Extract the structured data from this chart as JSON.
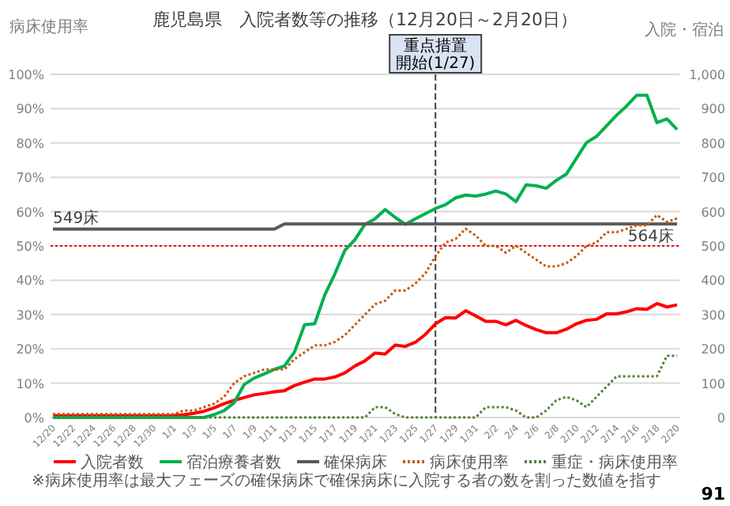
{
  "chart_data": {
    "type": "line",
    "title": "鹿児島県　入院者数等の推移（12月20日～2月20日）",
    "ylabel": "病床使用率",
    "y2label": "入院・宿泊",
    "categories": [
      "12/20",
      null,
      "12/22",
      null,
      "12/24",
      null,
      "12/26",
      null,
      "12/28",
      null,
      "12/30",
      null,
      "1/1",
      null,
      "1/3",
      null,
      "1/5",
      null,
      "1/7",
      null,
      "1/9",
      null,
      "1/11",
      null,
      "1/13",
      null,
      "1/15",
      null,
      "1/17",
      null,
      "1/19",
      null,
      "1/21",
      null,
      "1/23",
      null,
      "1/25",
      null,
      "1/27",
      null,
      "1/29",
      null,
      "1/31",
      null,
      "2/2",
      null,
      "2/4",
      null,
      "2/6",
      null,
      "2/8",
      null,
      "2/10",
      null,
      "2/12",
      null,
      "2/14",
      null,
      "2/16",
      null,
      "2/18",
      null,
      "2/20"
    ],
    "ylim": [
      0,
      100
    ],
    "yticks": [
      {
        "value": 0,
        "label": "0%"
      },
      {
        "value": 10,
        "label": "10%"
      },
      {
        "value": 20,
        "label": "20%"
      },
      {
        "value": 30,
        "label": "30%"
      },
      {
        "value": 40,
        "label": "40%"
      },
      {
        "value": 50,
        "label": "50%"
      },
      {
        "value": 60,
        "label": "60%"
      },
      {
        "value": 70,
        "label": "70%"
      },
      {
        "value": 80,
        "label": "80%"
      },
      {
        "value": 90,
        "label": "90%"
      },
      {
        "value": 100,
        "label": "100%"
      }
    ],
    "y2lim": [
      0,
      1000
    ],
    "y2ticks": [
      0,
      100,
      200,
      300,
      400,
      500,
      600,
      700,
      800,
      900,
      {
        "value": 1000,
        "label": "1,000"
      }
    ],
    "series": [
      {
        "name": "入院者数",
        "color": "#ff0000",
        "axis": "y2",
        "line_style": "solid",
        "values": [
          5,
          5,
          5,
          5,
          5,
          5,
          5,
          5,
          5,
          5,
          5,
          5,
          6,
          8,
          12,
          18,
          28,
          40,
          50,
          58,
          66,
          70,
          75,
          78,
          93,
          103,
          112,
          112,
          118,
          130,
          150,
          165,
          188,
          185,
          211,
          207,
          219,
          242,
          273,
          291,
          290,
          311,
          296,
          280,
          280,
          270,
          283,
          268,
          256,
          247,
          247,
          257,
          273,
          283,
          286,
          302,
          302,
          308,
          317,
          315,
          332,
          322,
          328
        ]
      },
      {
        "name": "宿泊療養者数",
        "color": "#00b050",
        "axis": "y2",
        "line_style": "solid",
        "values": [
          0,
          0,
          0,
          0,
          0,
          0,
          0,
          0,
          0,
          0,
          0,
          0,
          0,
          0,
          0,
          0,
          8,
          20,
          43,
          96,
          115,
          127,
          140,
          150,
          191,
          270,
          273,
          357,
          418,
          487,
          518,
          563,
          579,
          606,
          583,
          563,
          579,
          594,
          609,
          620,
          640,
          648,
          645,
          651,
          660,
          651,
          629,
          678,
          675,
          668,
          691,
          709,
          755,
          801,
          819,
          850,
          881,
          908,
          939,
          939,
          859,
          870,
          839
        ]
      },
      {
        "name": "確保病床",
        "color": "#595959",
        "axis": "y2",
        "line_style": "solid",
        "values": [
          549,
          549,
          549,
          549,
          549,
          549,
          549,
          549,
          549,
          549,
          549,
          549,
          549,
          549,
          549,
          549,
          549,
          549,
          549,
          549,
          549,
          549,
          549,
          564,
          564,
          564,
          564,
          564,
          564,
          564,
          564,
          564,
          564,
          564,
          564,
          564,
          564,
          564,
          564,
          564,
          564,
          564,
          564,
          564,
          564,
          564,
          564,
          564,
          564,
          564,
          564,
          564,
          564,
          564,
          564,
          564,
          564,
          564,
          564,
          564,
          564,
          564,
          564
        ],
        "value_labels": [
          "549床",
          null,
          null,
          null,
          null,
          null,
          null,
          null,
          null,
          null,
          null,
          null,
          null,
          null,
          null,
          null,
          null,
          null,
          null,
          null,
          null,
          null,
          null,
          null,
          null,
          null,
          null,
          null,
          null,
          null,
          null,
          null,
          null,
          null,
          null,
          null,
          null,
          null,
          null,
          null,
          null,
          null,
          null,
          null,
          null,
          null,
          null,
          null,
          null,
          null,
          null,
          null,
          null,
          null,
          null,
          null,
          null,
          null,
          null,
          null,
          null,
          null,
          "564床"
        ]
      },
      {
        "name": "病床使用率",
        "color": "#c55a11",
        "axis": "y",
        "line_style": "dotted",
        "values": [
          1,
          1,
          1,
          1,
          1,
          1,
          1,
          1,
          1,
          1,
          1,
          1,
          1,
          2,
          2,
          3,
          4,
          6,
          10,
          12,
          13,
          14,
          14,
          14,
          17,
          19,
          21,
          21,
          22,
          24,
          27,
          30,
          33,
          34,
          37,
          37,
          39,
          42,
          47,
          51,
          52,
          55,
          53,
          50,
          50,
          48,
          50,
          48,
          46,
          44,
          44,
          45,
          47,
          50,
          51,
          54,
          54,
          55,
          56,
          56,
          59,
          57,
          58
        ]
      },
      {
        "name": "重症・病床使用率",
        "color": "#548235",
        "axis": "y",
        "line_style": "dotted",
        "values": [
          0,
          0,
          0,
          0,
          0,
          0,
          0,
          0,
          0,
          0,
          0,
          0,
          0,
          0,
          0,
          0,
          0,
          0,
          0,
          0,
          0,
          0,
          0,
          0,
          0,
          0,
          0,
          0,
          0,
          0,
          0,
          0,
          3,
          3,
          1,
          0,
          0,
          0,
          0,
          0,
          0,
          0,
          0,
          3,
          3,
          3,
          2,
          0,
          0,
          2,
          5,
          6,
          5,
          3,
          6,
          9,
          12,
          12,
          12,
          12,
          12,
          18,
          18
        ]
      }
    ],
    "ref_lines": [
      {
        "axis": "y",
        "value": 50,
        "color": "#ff0000",
        "line_style": "dotted"
      },
      {
        "axis": "x",
        "value": "1/27",
        "label": "重点措置開始(1/27)",
        "color": "#404040",
        "line_style": "dashed"
      }
    ],
    "grid": "y",
    "legend": "bottom",
    "annotations": [
      "※病床使用率は最大フェーズの確保病床で確保病床に入院する者の数を割った数値を指す",
      "91"
    ]
  }
}
